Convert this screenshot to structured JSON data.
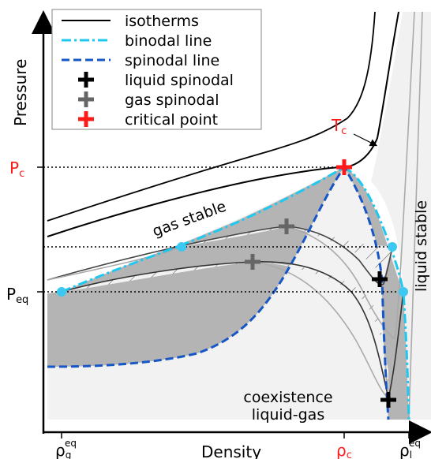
{
  "axes": {
    "x_label": "Density",
    "y_label": "Pressure"
  },
  "y_ticks": {
    "pc": "P",
    "pc_sub": "c",
    "peq": "P",
    "peq_sub": "eq"
  },
  "x_ticks": {
    "rho_g": "ρ",
    "rho_g_sub": "g",
    "rho_g_sup": "eq",
    "rho_c": "ρ",
    "rho_c_sub": "c",
    "rho_l": "ρ",
    "rho_l_sub": "l",
    "rho_l_sup": "eq"
  },
  "legend": {
    "items": [
      {
        "label": "isotherms",
        "style": "solid",
        "color": "#000000"
      },
      {
        "label": "binodal line",
        "style": "dashdot",
        "color": "#1ec8f0"
      },
      {
        "label": "spinodal line",
        "style": "dashed",
        "color": "#1656c6"
      },
      {
        "label": "liquid spinodal",
        "style": "plus",
        "color": "#000000"
      },
      {
        "label": "gas spinodal",
        "style": "plus",
        "color": "#666666"
      },
      {
        "label": "critical point",
        "style": "plus",
        "color": "#ff1a1a"
      }
    ]
  },
  "annotations": {
    "tc": "T",
    "tc_sub": "c",
    "gas_stable": "gas stable",
    "liquid_stable": "liquid stable",
    "coexistence_line1": "coexistence",
    "coexistence_line2": "liquid-gas"
  },
  "colors": {
    "critical": "#ff1a1a",
    "binodal": "#1ec8f0",
    "spinodal": "#1656c6",
    "metastable_fill": "#b4b4b4",
    "stable_fill": "#f0f0f0",
    "gas_spinodal_marker": "#666666"
  }
}
